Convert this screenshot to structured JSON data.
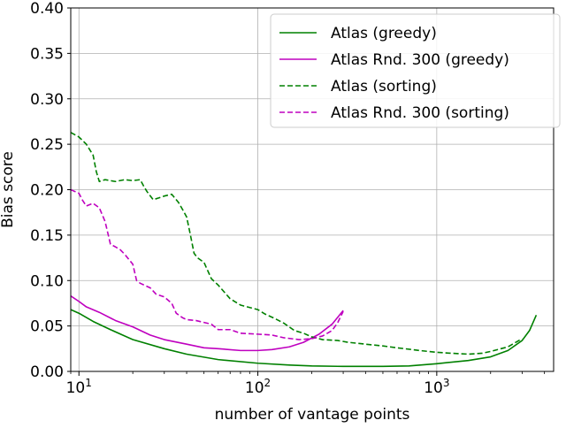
{
  "chart_data": {
    "type": "line",
    "xlabel": "number of vantage points",
    "ylabel": "Bias score",
    "xscale": "log",
    "xlim": [
      9,
      4500
    ],
    "ylim": [
      0,
      0.4
    ],
    "x_major_ticks": [
      {
        "value": 10,
        "base": "10",
        "exp": "1"
      },
      {
        "value": 100,
        "base": "10",
        "exp": "2"
      },
      {
        "value": 1000,
        "base": "10",
        "exp": "3"
      }
    ],
    "y_ticks": [
      {
        "value": 0.0,
        "label": "0.00"
      },
      {
        "value": 0.05,
        "label": "0.05"
      },
      {
        "value": 0.1,
        "label": "0.10"
      },
      {
        "value": 0.15,
        "label": "0.15"
      },
      {
        "value": 0.2,
        "label": "0.20"
      },
      {
        "value": 0.25,
        "label": "0.25"
      },
      {
        "value": 0.3,
        "label": "0.30"
      },
      {
        "value": 0.35,
        "label": "0.35"
      },
      {
        "value": 0.4,
        "label": "0.40"
      }
    ],
    "grid": true,
    "legend_position": "top-right",
    "series": [
      {
        "name": "Atlas (greedy)",
        "color": "#008000",
        "style": "solid",
        "points": [
          [
            9,
            0.068
          ],
          [
            10,
            0.064
          ],
          [
            12,
            0.055
          ],
          [
            15,
            0.046
          ],
          [
            20,
            0.035
          ],
          [
            30,
            0.025
          ],
          [
            40,
            0.019
          ],
          [
            60,
            0.013
          ],
          [
            100,
            0.009
          ],
          [
            150,
            0.007
          ],
          [
            200,
            0.006
          ],
          [
            300,
            0.0055
          ],
          [
            500,
            0.0055
          ],
          [
            700,
            0.006
          ],
          [
            1000,
            0.0085
          ],
          [
            1500,
            0.012
          ],
          [
            2000,
            0.016
          ],
          [
            2500,
            0.023
          ],
          [
            3000,
            0.034
          ],
          [
            3300,
            0.045
          ],
          [
            3600,
            0.062
          ]
        ]
      },
      {
        "name": "Atlas Rnd. 300 (greedy)",
        "color": "#bf00bf",
        "style": "solid",
        "points": [
          [
            9,
            0.083
          ],
          [
            10,
            0.077
          ],
          [
            11,
            0.071
          ],
          [
            13,
            0.065
          ],
          [
            16,
            0.056
          ],
          [
            20,
            0.049
          ],
          [
            25,
            0.04
          ],
          [
            30,
            0.035
          ],
          [
            40,
            0.03
          ],
          [
            50,
            0.026
          ],
          [
            60,
            0.025
          ],
          [
            80,
            0.023
          ],
          [
            100,
            0.023
          ],
          [
            120,
            0.024
          ],
          [
            150,
            0.027
          ],
          [
            180,
            0.032
          ],
          [
            220,
            0.041
          ],
          [
            260,
            0.052
          ],
          [
            300,
            0.067
          ]
        ]
      },
      {
        "name": "Atlas (sorting)",
        "color": "#008000",
        "style": "dashed",
        "points": [
          [
            9,
            0.263
          ],
          [
            10,
            0.258
          ],
          [
            11,
            0.25
          ],
          [
            12,
            0.238
          ],
          [
            12.5,
            0.22
          ],
          [
            13,
            0.209
          ],
          [
            14,
            0.211
          ],
          [
            16,
            0.209
          ],
          [
            18,
            0.211
          ],
          [
            20,
            0.21
          ],
          [
            22,
            0.211
          ],
          [
            23,
            0.204
          ],
          [
            24,
            0.198
          ],
          [
            26,
            0.189
          ],
          [
            28,
            0.191
          ],
          [
            30,
            0.193
          ],
          [
            33,
            0.195
          ],
          [
            36,
            0.186
          ],
          [
            38,
            0.178
          ],
          [
            40,
            0.17
          ],
          [
            42,
            0.15
          ],
          [
            44,
            0.13
          ],
          [
            46,
            0.125
          ],
          [
            50,
            0.12
          ],
          [
            55,
            0.102
          ],
          [
            60,
            0.095
          ],
          [
            70,
            0.08
          ],
          [
            80,
            0.073
          ],
          [
            100,
            0.068
          ],
          [
            110,
            0.063
          ],
          [
            125,
            0.058
          ],
          [
            140,
            0.053
          ],
          [
            160,
            0.045
          ],
          [
            180,
            0.042
          ],
          [
            200,
            0.038
          ],
          [
            230,
            0.035
          ],
          [
            280,
            0.034
          ],
          [
            320,
            0.032
          ],
          [
            400,
            0.03
          ],
          [
            500,
            0.028
          ],
          [
            600,
            0.026
          ],
          [
            800,
            0.023
          ],
          [
            1000,
            0.021
          ],
          [
            1200,
            0.02
          ],
          [
            1500,
            0.019
          ],
          [
            1800,
            0.02
          ],
          [
            2000,
            0.022
          ],
          [
            2500,
            0.027
          ],
          [
            3000,
            0.036
          ]
        ]
      },
      {
        "name": "Atlas Rnd. 300 (sorting)",
        "color": "#bf00bf",
        "style": "dashed",
        "points": [
          [
            9,
            0.2
          ],
          [
            10,
            0.196
          ],
          [
            10.5,
            0.188
          ],
          [
            11,
            0.182
          ],
          [
            12,
            0.185
          ],
          [
            13,
            0.18
          ],
          [
            14,
            0.165
          ],
          [
            15,
            0.14
          ],
          [
            16,
            0.137
          ],
          [
            17,
            0.134
          ],
          [
            18,
            0.129
          ],
          [
            20,
            0.118
          ],
          [
            21,
            0.1
          ],
          [
            22,
            0.097
          ],
          [
            25,
            0.092
          ],
          [
            27,
            0.085
          ],
          [
            30,
            0.082
          ],
          [
            33,
            0.075
          ],
          [
            35,
            0.064
          ],
          [
            38,
            0.059
          ],
          [
            40,
            0.057
          ],
          [
            45,
            0.056
          ],
          [
            55,
            0.052
          ],
          [
            60,
            0.046
          ],
          [
            70,
            0.046
          ],
          [
            80,
            0.042
          ],
          [
            100,
            0.041
          ],
          [
            120,
            0.04
          ],
          [
            140,
            0.037
          ],
          [
            170,
            0.035
          ],
          [
            200,
            0.036
          ],
          [
            230,
            0.039
          ],
          [
            260,
            0.045
          ],
          [
            280,
            0.054
          ],
          [
            300,
            0.066
          ]
        ]
      }
    ]
  }
}
